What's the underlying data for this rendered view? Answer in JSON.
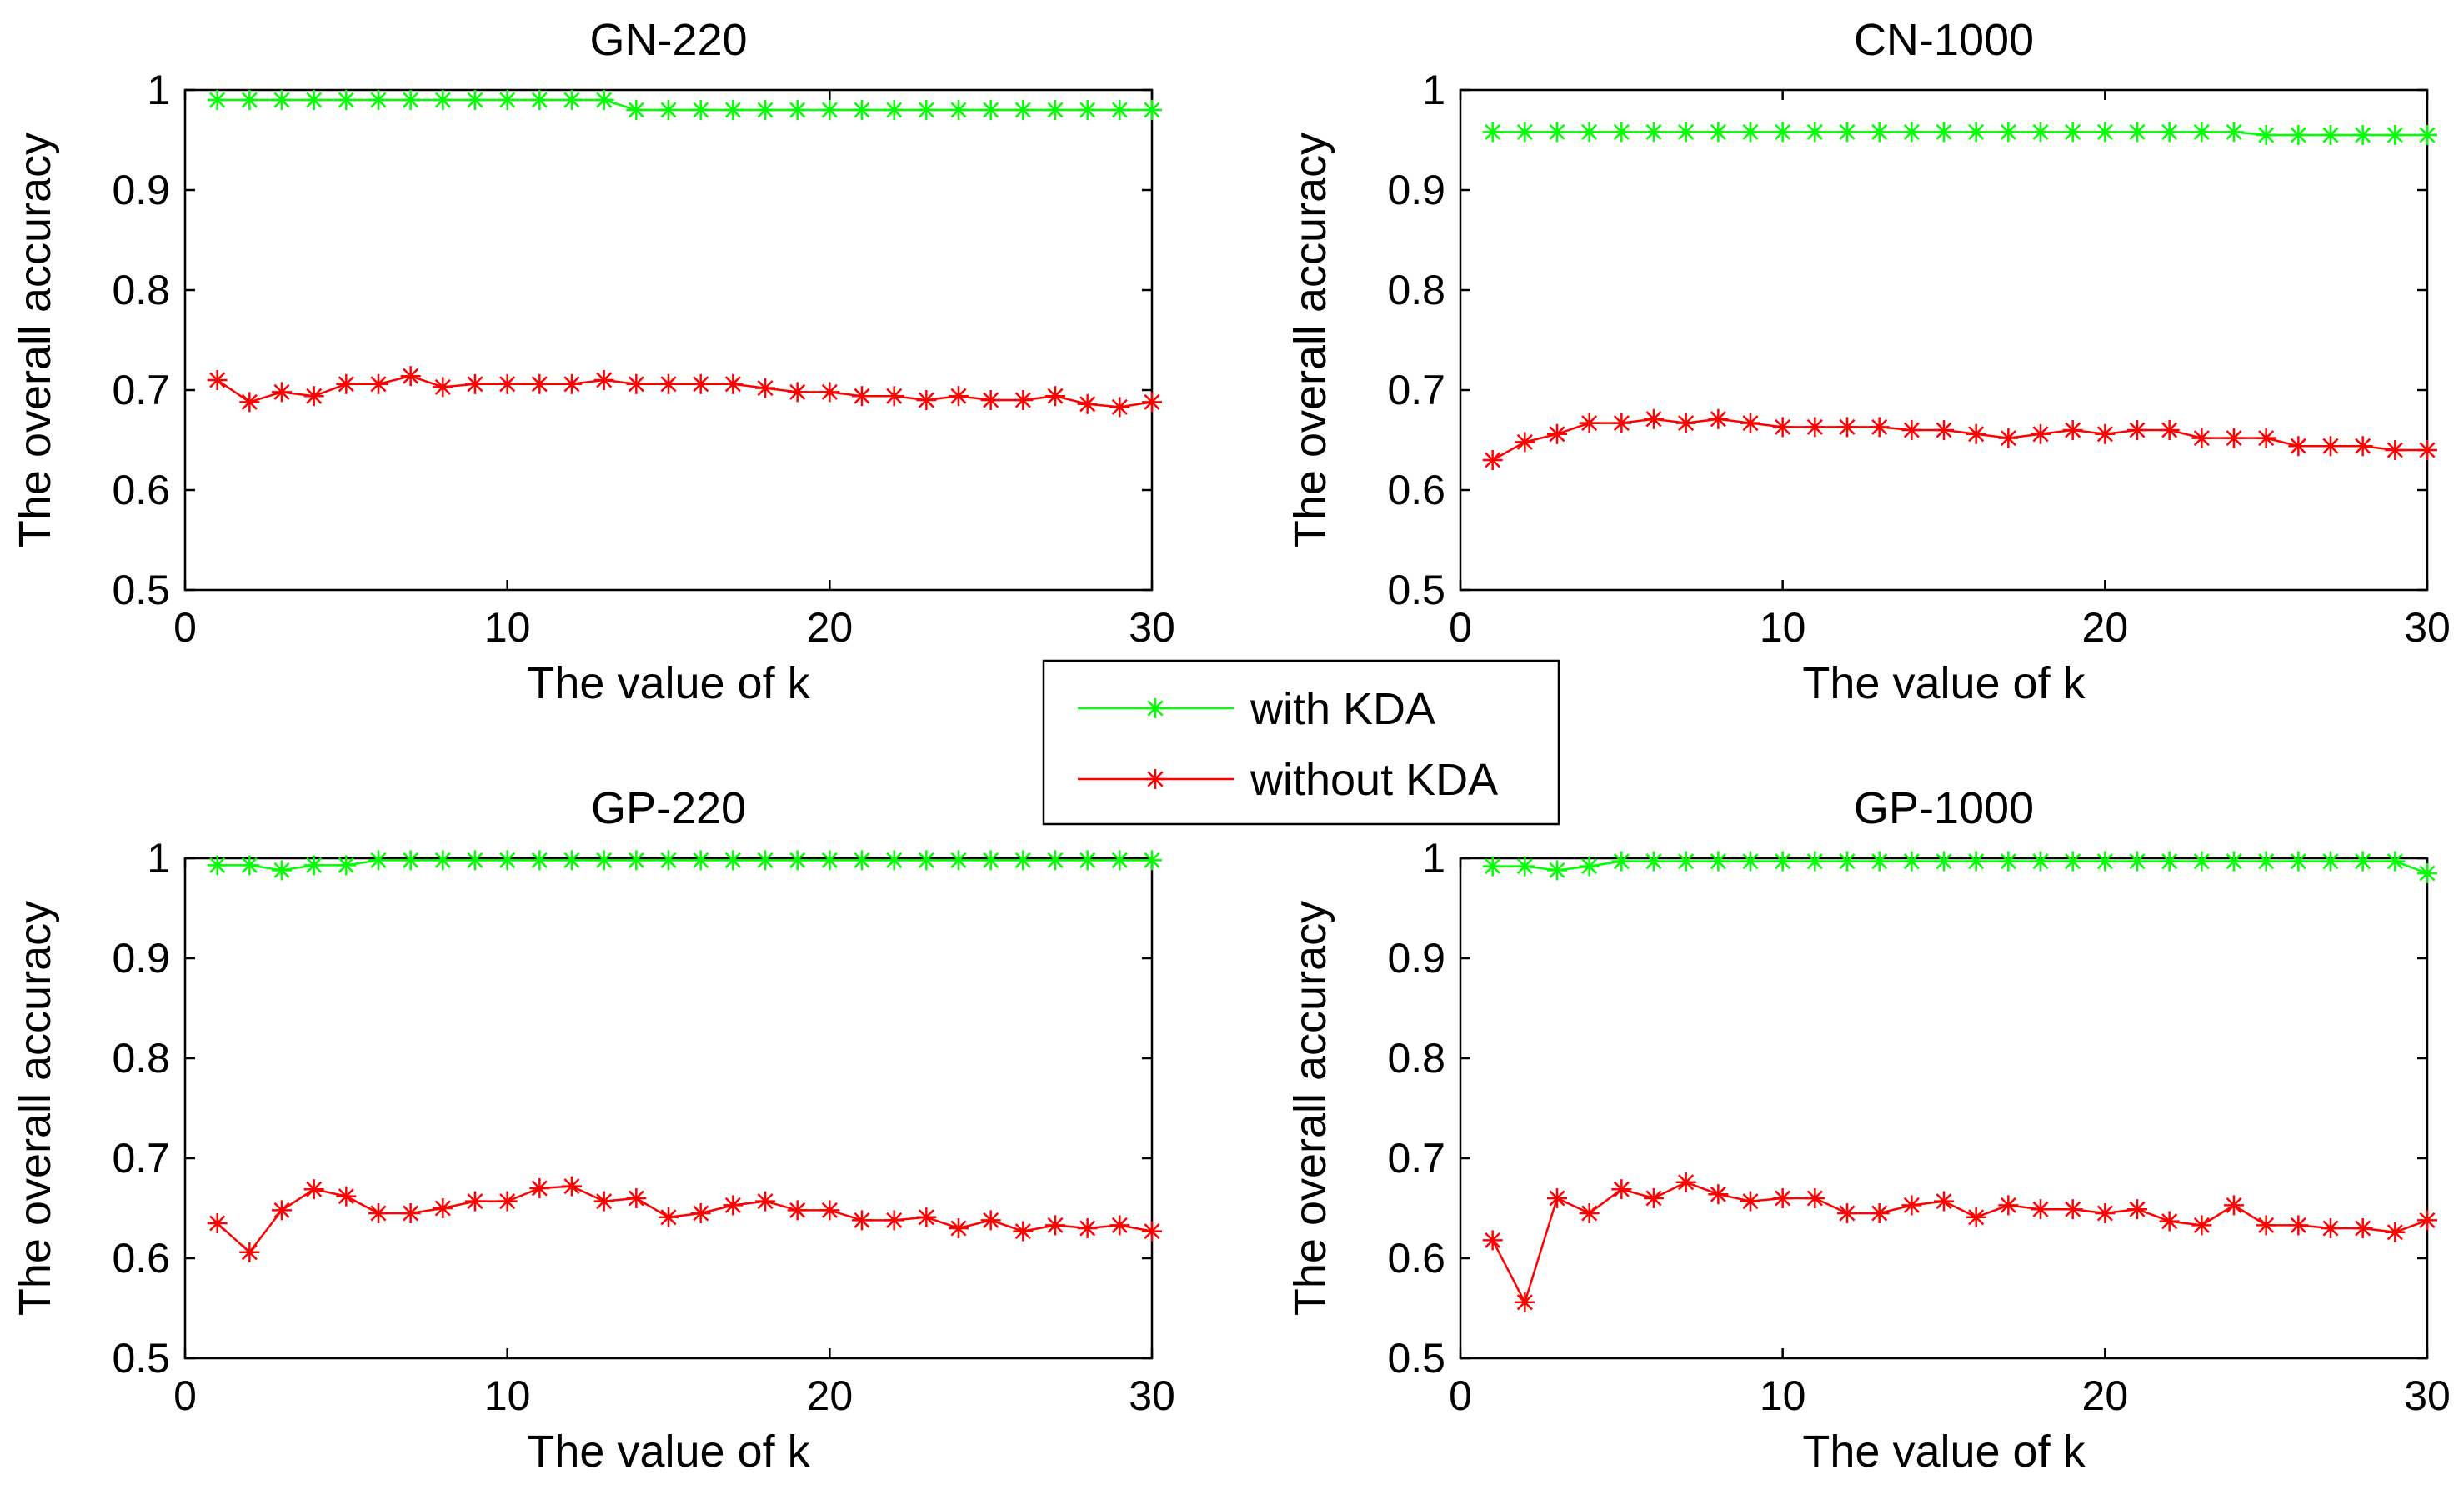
{
  "chart_data": [
    {
      "type": "line",
      "title": "GN-220",
      "xlabel": "The value of k",
      "ylabel": "The overall accuracy",
      "xlim": [
        0,
        30
      ],
      "ylim": [
        0.5,
        1
      ],
      "xticks": [
        0,
        10,
        20,
        30
      ],
      "yticks": [
        0.5,
        0.6,
        0.7,
        0.8,
        0.9,
        1
      ],
      "ytick_labels": [
        "0.5",
        "0.6",
        "0.7",
        "0.8",
        "0.9",
        "1"
      ],
      "x": [
        1,
        2,
        3,
        4,
        5,
        6,
        7,
        8,
        9,
        10,
        11,
        12,
        13,
        14,
        15,
        16,
        17,
        18,
        19,
        20,
        21,
        22,
        23,
        24,
        25,
        26,
        27,
        28,
        29,
        30
      ],
      "series": [
        {
          "name": "with KDA",
          "color": "#00ff00",
          "values": [
            0.99,
            0.99,
            0.99,
            0.99,
            0.99,
            0.99,
            0.99,
            0.99,
            0.99,
            0.99,
            0.99,
            0.99,
            0.99,
            0.98,
            0.98,
            0.98,
            0.98,
            0.98,
            0.98,
            0.98,
            0.98,
            0.98,
            0.98,
            0.98,
            0.98,
            0.98,
            0.98,
            0.98,
            0.98,
            0.98
          ]
        },
        {
          "name": "without KDA",
          "color": "#ff0000",
          "values": [
            0.71,
            0.688,
            0.698,
            0.694,
            0.706,
            0.706,
            0.714,
            0.703,
            0.706,
            0.706,
            0.706,
            0.706,
            0.71,
            0.706,
            0.706,
            0.706,
            0.706,
            0.702,
            0.698,
            0.698,
            0.694,
            0.694,
            0.69,
            0.694,
            0.69,
            0.69,
            0.694,
            0.686,
            0.683,
            0.688
          ]
        }
      ]
    },
    {
      "type": "line",
      "title": "CN-1000",
      "xlabel": "The value of k",
      "ylabel": "The overall accuracy",
      "xlim": [
        0,
        30
      ],
      "ylim": [
        0.5,
        1
      ],
      "xticks": [
        0,
        10,
        20,
        30
      ],
      "yticks": [
        0.5,
        0.6,
        0.7,
        0.8,
        0.9,
        1
      ],
      "ytick_labels": [
        "0.5",
        "0.6",
        "0.7",
        "0.8",
        "0.9",
        "1"
      ],
      "x": [
        1,
        2,
        3,
        4,
        5,
        6,
        7,
        8,
        9,
        10,
        11,
        12,
        13,
        14,
        15,
        16,
        17,
        18,
        19,
        20,
        21,
        22,
        23,
        24,
        25,
        26,
        27,
        28,
        29,
        30
      ],
      "series": [
        {
          "name": "with KDA",
          "color": "#00ff00",
          "values": [
            0.958,
            0.958,
            0.958,
            0.958,
            0.958,
            0.958,
            0.958,
            0.958,
            0.958,
            0.958,
            0.958,
            0.958,
            0.958,
            0.958,
            0.958,
            0.958,
            0.958,
            0.958,
            0.958,
            0.958,
            0.958,
            0.958,
            0.958,
            0.958,
            0.955,
            0.955,
            0.955,
            0.955,
            0.955,
            0.955
          ]
        },
        {
          "name": "without KDA",
          "color": "#ff0000",
          "values": [
            0.63,
            0.648,
            0.656,
            0.667,
            0.667,
            0.671,
            0.667,
            0.671,
            0.667,
            0.663,
            0.663,
            0.663,
            0.663,
            0.66,
            0.66,
            0.656,
            0.652,
            0.656,
            0.66,
            0.656,
            0.66,
            0.66,
            0.652,
            0.652,
            0.652,
            0.644,
            0.644,
            0.644,
            0.64,
            0.64
          ]
        }
      ]
    },
    {
      "type": "line",
      "title": "GP-220",
      "xlabel": "The value of k",
      "ylabel": "The overall accuracy",
      "xlim": [
        0,
        30
      ],
      "ylim": [
        0.5,
        1
      ],
      "xticks": [
        0,
        10,
        20,
        30
      ],
      "yticks": [
        0.5,
        0.6,
        0.7,
        0.8,
        0.9,
        1
      ],
      "ytick_labels": [
        "0.5",
        "0.6",
        "0.7",
        "0.8",
        "0.9",
        "1"
      ],
      "x": [
        1,
        2,
        3,
        4,
        5,
        6,
        7,
        8,
        9,
        10,
        11,
        12,
        13,
        14,
        15,
        16,
        17,
        18,
        19,
        20,
        21,
        22,
        23,
        24,
        25,
        26,
        27,
        28,
        29,
        30
      ],
      "series": [
        {
          "name": "with KDA",
          "color": "#00ff00",
          "values": [
            0.993,
            0.993,
            0.988,
            0.993,
            0.993,
            0.998,
            0.998,
            0.998,
            0.998,
            0.998,
            0.998,
            0.998,
            0.998,
            0.998,
            0.998,
            0.998,
            0.998,
            0.998,
            0.998,
            0.998,
            0.998,
            0.998,
            0.998,
            0.998,
            0.998,
            0.998,
            0.998,
            0.998,
            0.998,
            0.998
          ]
        },
        {
          "name": "without KDA",
          "color": "#ff0000",
          "values": [
            0.635,
            0.606,
            0.648,
            0.669,
            0.662,
            0.645,
            0.645,
            0.65,
            0.657,
            0.657,
            0.67,
            0.672,
            0.657,
            0.66,
            0.641,
            0.645,
            0.653,
            0.657,
            0.648,
            0.648,
            0.638,
            0.638,
            0.641,
            0.63,
            0.638,
            0.627,
            0.633,
            0.63,
            0.633,
            0.627
          ]
        }
      ]
    },
    {
      "type": "line",
      "title": "GP-1000",
      "xlabel": "The value of k",
      "ylabel": "The overall accuracy",
      "xlim": [
        0,
        30
      ],
      "ylim": [
        0.5,
        1
      ],
      "xticks": [
        0,
        10,
        20,
        30
      ],
      "yticks": [
        0.5,
        0.6,
        0.7,
        0.8,
        0.9,
        1
      ],
      "ytick_labels": [
        "0.5",
        "0.6",
        "0.7",
        "0.8",
        "0.9",
        "1"
      ],
      "x": [
        1,
        2,
        3,
        4,
        5,
        6,
        7,
        8,
        9,
        10,
        11,
        12,
        13,
        14,
        15,
        16,
        17,
        18,
        19,
        20,
        21,
        22,
        23,
        24,
        25,
        26,
        27,
        28,
        29,
        30
      ],
      "series": [
        {
          "name": "with KDA",
          "color": "#00ff00",
          "values": [
            0.992,
            0.992,
            0.988,
            0.992,
            0.997,
            0.997,
            0.997,
            0.997,
            0.997,
            0.997,
            0.997,
            0.997,
            0.997,
            0.997,
            0.997,
            0.997,
            0.997,
            0.997,
            0.997,
            0.997,
            0.997,
            0.997,
            0.997,
            0.997,
            0.997,
            0.997,
            0.997,
            0.997,
            0.997,
            0.985
          ]
        },
        {
          "name": "without KDA",
          "color": "#ff0000",
          "values": [
            0.618,
            0.556,
            0.66,
            0.645,
            0.669,
            0.66,
            0.676,
            0.664,
            0.657,
            0.66,
            0.66,
            0.645,
            0.645,
            0.653,
            0.657,
            0.641,
            0.653,
            0.649,
            0.649,
            0.645,
            0.649,
            0.637,
            0.633,
            0.653,
            0.633,
            0.633,
            0.63,
            0.63,
            0.626,
            0.638
          ]
        }
      ]
    }
  ],
  "legend": {
    "placement": "center",
    "entries": [
      {
        "label": "with KDA",
        "color": "#00ff00"
      },
      {
        "label": "without KDA",
        "color": "#ff0000"
      }
    ]
  }
}
